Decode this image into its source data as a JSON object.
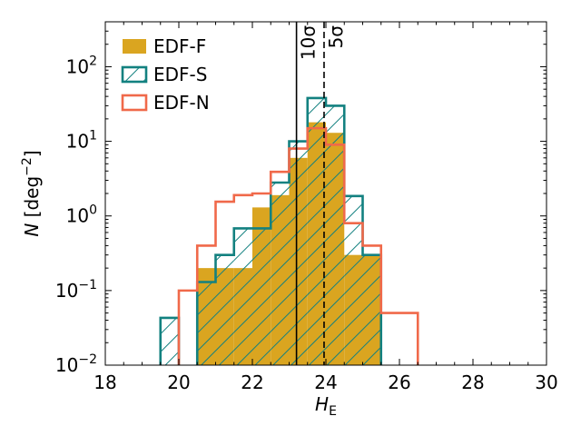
{
  "chart_data": {
    "type": "histogram",
    "x_scale": "linear",
    "y_scale": "log",
    "xlim": [
      18,
      30
    ],
    "ylim": [
      0.01,
      400
    ],
    "xlabel": "H",
    "xlabel_sub": "E",
    "ylabel": "N [deg",
    "ylabel_sup": "−2",
    "ylabel_close": "]",
    "x_ticks": [
      {
        "value": 18,
        "label": "18"
      },
      {
        "value": 20,
        "label": "20"
      },
      {
        "value": 22,
        "label": "22"
      },
      {
        "value": 24,
        "label": "24"
      },
      {
        "value": 26,
        "label": "26"
      },
      {
        "value": 28,
        "label": "28"
      },
      {
        "value": 30,
        "label": "30"
      }
    ],
    "y_ticks": [
      {
        "value": 0.01,
        "base": "10",
        "exp": "−2"
      },
      {
        "value": 0.1,
        "base": "10",
        "exp": "−1"
      },
      {
        "value": 1,
        "base": "10",
        "exp": "0"
      },
      {
        "value": 10,
        "base": "10",
        "exp": "1"
      },
      {
        "value": 100,
        "base": "10",
        "exp": "2"
      }
    ],
    "bin_edges": [
      19.5,
      20.0,
      20.5,
      21.0,
      21.5,
      22.0,
      22.5,
      23.0,
      23.5,
      24.0,
      24.5,
      25.0,
      25.5,
      26.0,
      26.5
    ],
    "series": [
      {
        "name": "EDF-F",
        "style": "filled",
        "color": "#DAA520",
        "values": [
          0,
          0,
          0.2,
          0.2,
          0.2,
          1.3,
          1.9,
          6.0,
          18.0,
          13.0,
          0.3,
          0.3,
          0,
          0
        ]
      },
      {
        "name": "EDF-S",
        "style": "hatched",
        "color": "#138180",
        "values": [
          0.043,
          0,
          0.13,
          0.3,
          0.68,
          0.68,
          2.8,
          10.0,
          38.0,
          30.0,
          1.85,
          0.3,
          0,
          0
        ]
      },
      {
        "name": "EDF-N",
        "style": "step",
        "color": "#F0694A",
        "values": [
          0,
          0.1,
          0.4,
          1.55,
          1.9,
          2.0,
          3.9,
          8.0,
          15.0,
          9.0,
          0.8,
          0.4,
          0.05,
          0.05
        ]
      }
    ],
    "vlines": [
      {
        "x": 23.2,
        "style": "solid",
        "label": "10σ"
      },
      {
        "x": 23.95,
        "style": "dashed",
        "label": "5σ"
      }
    ],
    "legend_position": "upper-left",
    "grid": false
  }
}
